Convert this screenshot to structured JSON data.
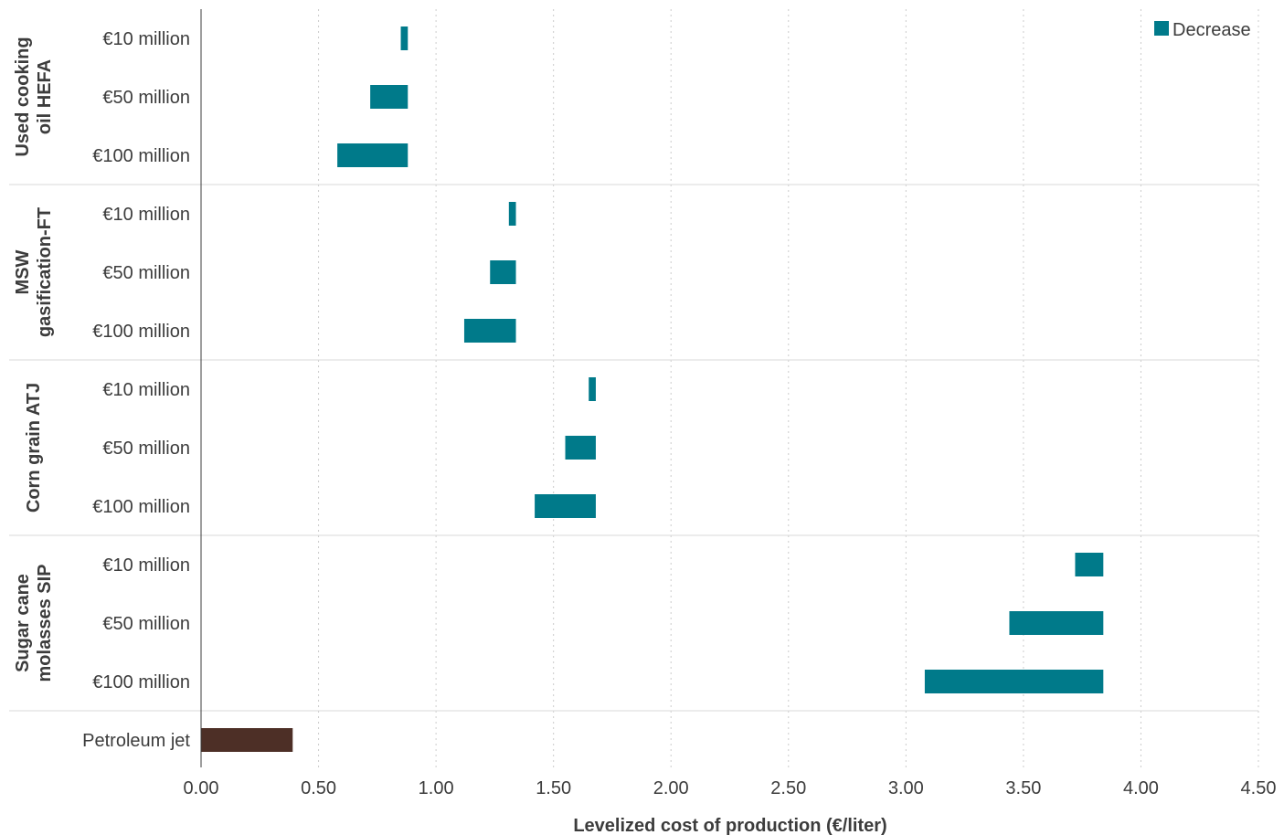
{
  "chart_data": {
    "type": "bar",
    "orientation": "horizontal",
    "xlabel": "Levelized cost of production (€/liter)",
    "ylabel": "",
    "xlim": [
      0,
      4.5
    ],
    "x_ticks": [
      "0.00",
      "0.50",
      "1.00",
      "1.50",
      "2.00",
      "2.50",
      "3.00",
      "3.50",
      "4.00",
      "4.50"
    ],
    "grid": "vertical dotted",
    "legend": {
      "position": "top-right",
      "entries": [
        {
          "label": "Decrease",
          "color": "#007a8a"
        }
      ]
    },
    "colors": {
      "decrease": "#007a8a",
      "petroleum": "#4d2f26",
      "axis": "#3c3c3c",
      "grid": "#cccccc",
      "separator": "#d9d9d9"
    },
    "groups": [
      {
        "label": [
          "Used cooking",
          "oil HEFA"
        ],
        "rows": [
          {
            "label": "€10 million",
            "start": 0.85,
            "end": 0.88
          },
          {
            "label": "€50 million",
            "start": 0.72,
            "end": 0.88
          },
          {
            "label": "€100 million",
            "start": 0.58,
            "end": 0.88
          }
        ]
      },
      {
        "label": [
          "MSW",
          "gasification-FT"
        ],
        "rows": [
          {
            "label": "€10 million",
            "start": 1.31,
            "end": 1.34
          },
          {
            "label": "€50 million",
            "start": 1.23,
            "end": 1.34
          },
          {
            "label": "€100 million",
            "start": 1.12,
            "end": 1.34
          }
        ]
      },
      {
        "label": [
          "Corn grain ATJ"
        ],
        "rows": [
          {
            "label": "€10 million",
            "start": 1.65,
            "end": 1.68
          },
          {
            "label": "€50 million",
            "start": 1.55,
            "end": 1.68
          },
          {
            "label": "€100 million",
            "start": 1.42,
            "end": 1.68
          }
        ]
      },
      {
        "label": [
          "Sugar cane",
          "molasses SIP"
        ],
        "rows": [
          {
            "label": "€10 million",
            "start": 3.72,
            "end": 3.84
          },
          {
            "label": "€50 million",
            "start": 3.44,
            "end": 3.84
          },
          {
            "label": "€100 million",
            "start": 3.08,
            "end": 3.84
          }
        ]
      }
    ],
    "baseline": {
      "label": "Petroleum jet",
      "start": 0,
      "end": 0.39
    }
  }
}
